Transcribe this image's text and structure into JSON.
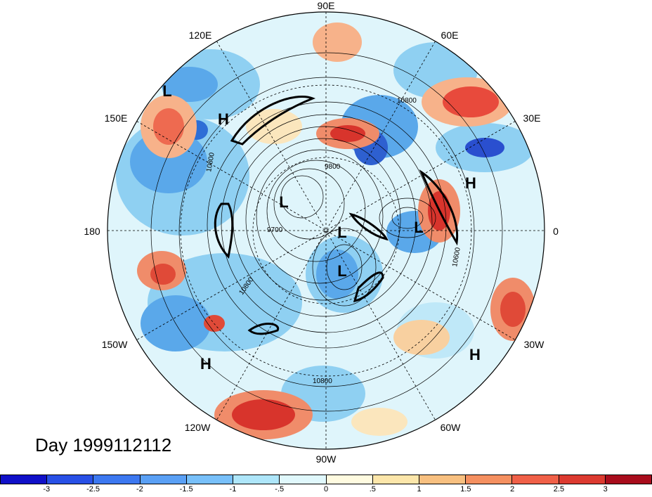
{
  "map": {
    "day_label": "Day 1999112112",
    "longitude_labels": [
      "90E",
      "60E",
      "30E",
      "0",
      "30W",
      "60W",
      "90W",
      "120W",
      "150W",
      "180",
      "150E",
      "120E"
    ],
    "contour_labels": [
      "10800",
      "9800",
      "9700",
      "10800",
      "10800",
      "10600",
      "10800"
    ],
    "pressure_centers": [
      {
        "label": "L",
        "type": "low"
      },
      {
        "label": "H",
        "type": "high"
      },
      {
        "label": "H",
        "type": "high"
      },
      {
        "label": "L",
        "type": "low"
      },
      {
        "label": "L",
        "type": "low"
      },
      {
        "label": "L",
        "type": "low"
      },
      {
        "label": "L",
        "type": "low"
      },
      {
        "label": "H",
        "type": "high"
      },
      {
        "label": "H",
        "type": "high"
      }
    ]
  },
  "colorbar": {
    "ticks": [
      "-3",
      "-2.5",
      "-2",
      "-1.5",
      "-1",
      "-.5",
      "0",
      ".5",
      "1",
      "1.5",
      "2",
      "2.5",
      "3"
    ],
    "colors": [
      "#1010c8",
      "#2850e6",
      "#3c78f0",
      "#5aa0f5",
      "#78c0fa",
      "#aee6fa",
      "#e0f8fc",
      "#fffbe0",
      "#fce6aa",
      "#f8c080",
      "#f59060",
      "#f06048",
      "#dc3a30",
      "#a80c1c"
    ]
  }
}
